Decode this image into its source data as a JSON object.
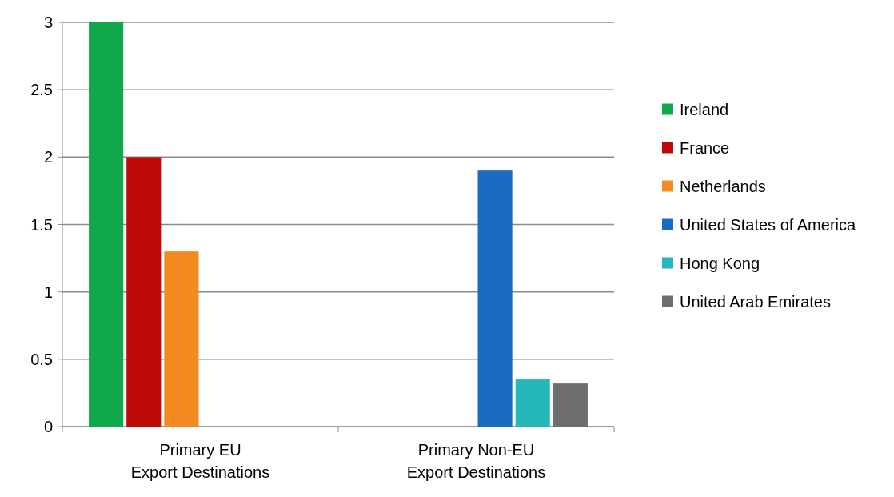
{
  "chart_data": {
    "type": "bar",
    "categories": [
      "Primary EU Export Destinations",
      "Primary Non-EU Export Destinations"
    ],
    "series": [
      {
        "name": "Ireland",
        "color": "#10a84a",
        "values": [
          3,
          null
        ]
      },
      {
        "name": "France",
        "color": "#c00a0a",
        "values": [
          2,
          null
        ]
      },
      {
        "name": "Netherlands",
        "color": "#f38a22",
        "values": [
          1.3,
          null
        ]
      },
      {
        "name": "United States of America",
        "color": "#1a6cc0",
        "values": [
          null,
          1.9
        ]
      },
      {
        "name": "Hong Kong",
        "color": "#26b8b8",
        "values": [
          null,
          0.35
        ]
      },
      {
        "name": "United Arab Emirates",
        "color": "#6e6e6e",
        "values": [
          null,
          0.32
        ]
      }
    ],
    "ylim": [
      0,
      3
    ],
    "yticks": [
      0,
      0.5,
      1,
      1.5,
      2,
      2.5,
      3
    ],
    "grid": "y",
    "legend": "right"
  }
}
